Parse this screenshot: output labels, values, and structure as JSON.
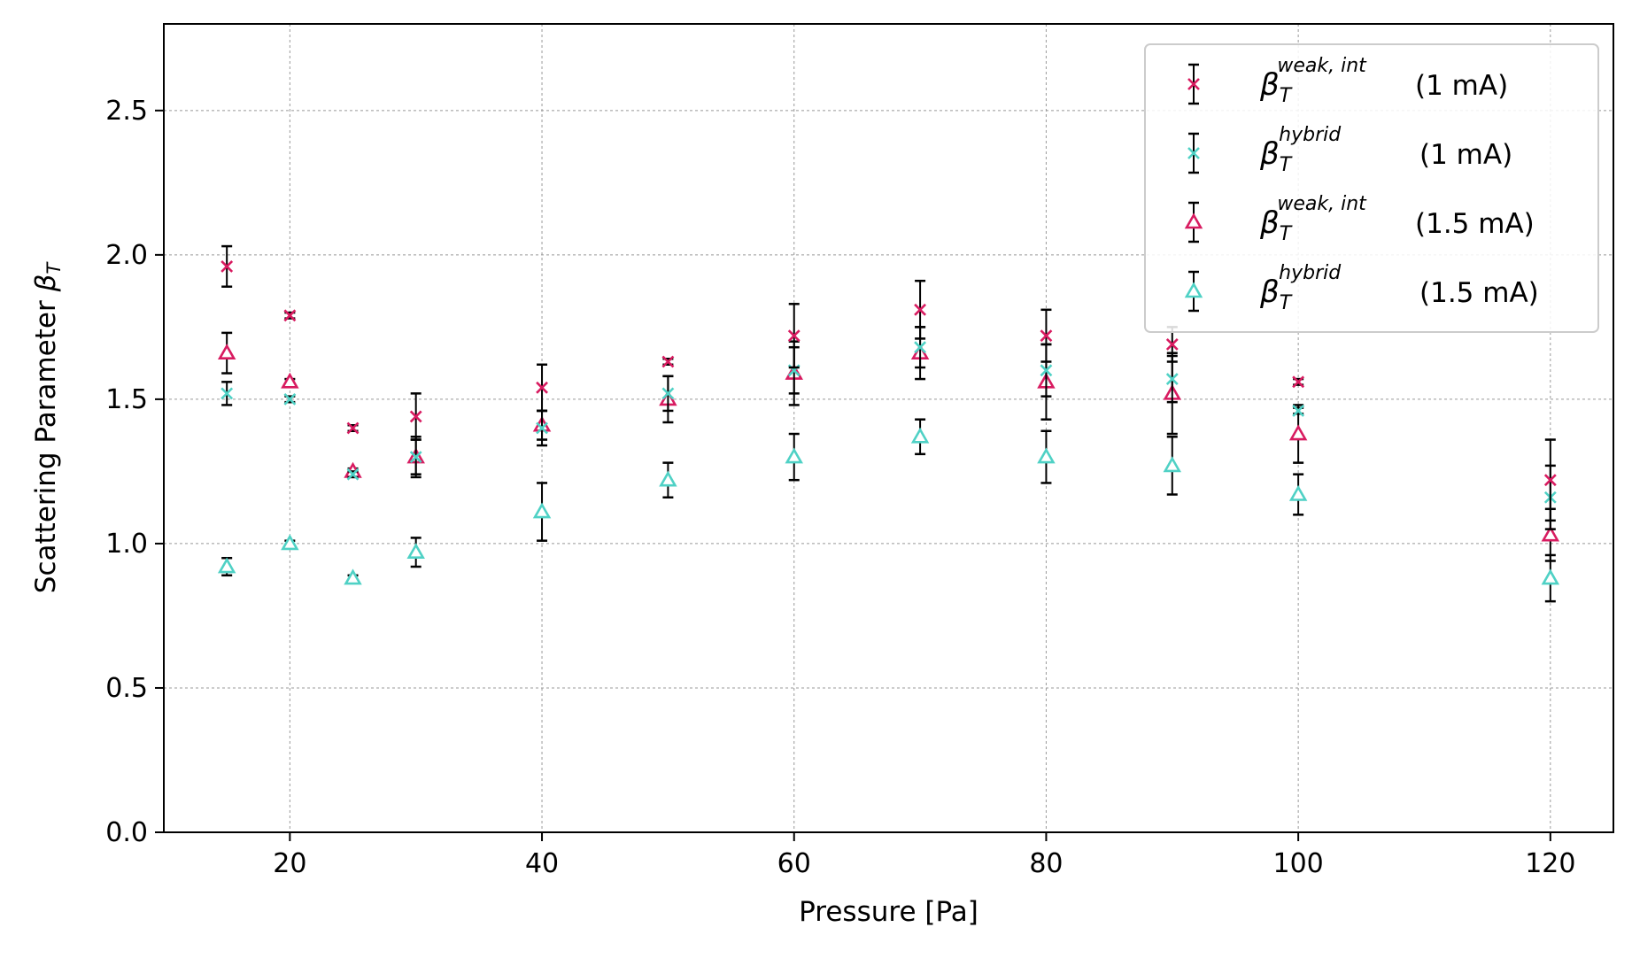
{
  "chart_data": {
    "type": "scatter",
    "title": "",
    "xlabel": "Pressure [Pa]",
    "ylabel_main": "Scattering Parameter ",
    "ylabel_symbol": "β",
    "ylabel_sub": "T",
    "xlim": [
      10,
      125
    ],
    "ylim": [
      0,
      2.8
    ],
    "xticks": [
      "20",
      "40",
      "60",
      "80",
      "100",
      "120"
    ],
    "yticks": [
      "0.0",
      "0.5",
      "1.0",
      "1.5",
      "2.0",
      "2.5"
    ],
    "grid": true,
    "legend_position": "top-right",
    "error_bar_color": "#000000",
    "series": [
      {
        "name_symbol": "β",
        "name_sub": "T",
        "name_sup": "weak, int",
        "name_suffix": "(1 mA)",
        "marker": "x",
        "color": "#d81b60",
        "x": [
          15,
          20,
          25,
          30,
          40,
          50,
          60,
          70,
          80,
          90,
          100,
          120
        ],
        "y": [
          1.96,
          1.79,
          1.4,
          1.44,
          1.54,
          1.63,
          1.72,
          1.81,
          1.72,
          1.69,
          1.56,
          1.22
        ],
        "err": [
          0.07,
          0.01,
          0.01,
          0.08,
          0.08,
          0.01,
          0.11,
          0.1,
          0.09,
          0.06,
          0.01,
          0.14
        ]
      },
      {
        "name_symbol": "β",
        "name_sub": "T",
        "name_sup": "hybrid",
        "name_suffix": "(1 mA)",
        "marker": "x",
        "color": "#4fd1c5",
        "x": [
          15,
          20,
          25,
          30,
          40,
          50,
          60,
          70,
          80,
          90,
          100,
          120
        ],
        "y": [
          1.52,
          1.5,
          1.24,
          1.3,
          1.4,
          1.52,
          1.6,
          1.68,
          1.6,
          1.57,
          1.46,
          1.16
        ],
        "err": [
          0.04,
          0.01,
          0.01,
          0.06,
          0.06,
          0.06,
          0.08,
          0.07,
          0.09,
          0.08,
          0.01,
          0.11
        ]
      },
      {
        "name_symbol": "β",
        "name_sub": "T",
        "name_sup": "weak, int",
        "name_suffix": "(1.5 mA)",
        "marker": "triangle",
        "color": "#d81b60",
        "x": [
          15,
          20,
          25,
          30,
          40,
          50,
          60,
          70,
          80,
          90,
          100,
          120
        ],
        "y": [
          1.66,
          1.56,
          1.25,
          1.3,
          1.41,
          1.5,
          1.59,
          1.66,
          1.56,
          1.52,
          1.38,
          1.03
        ],
        "err": [
          0.07,
          0.01,
          0.01,
          0.07,
          0.05,
          0.08,
          0.11,
          0.09,
          0.13,
          0.14,
          0.1,
          0.09
        ]
      },
      {
        "name_symbol": "β",
        "name_sub": "T",
        "name_sup": "hybrid",
        "name_suffix": "(1.5 mA)",
        "marker": "triangle",
        "color": "#4fd1c5",
        "x": [
          15,
          20,
          25,
          30,
          40,
          50,
          60,
          70,
          80,
          90,
          100,
          120
        ],
        "y": [
          0.92,
          1.0,
          0.88,
          0.97,
          1.11,
          1.22,
          1.3,
          1.37,
          1.3,
          1.27,
          1.17,
          0.88
        ],
        "err": [
          0.03,
          0.01,
          0.01,
          0.05,
          0.1,
          0.06,
          0.08,
          0.06,
          0.09,
          0.1,
          0.07,
          0.08
        ]
      }
    ]
  }
}
